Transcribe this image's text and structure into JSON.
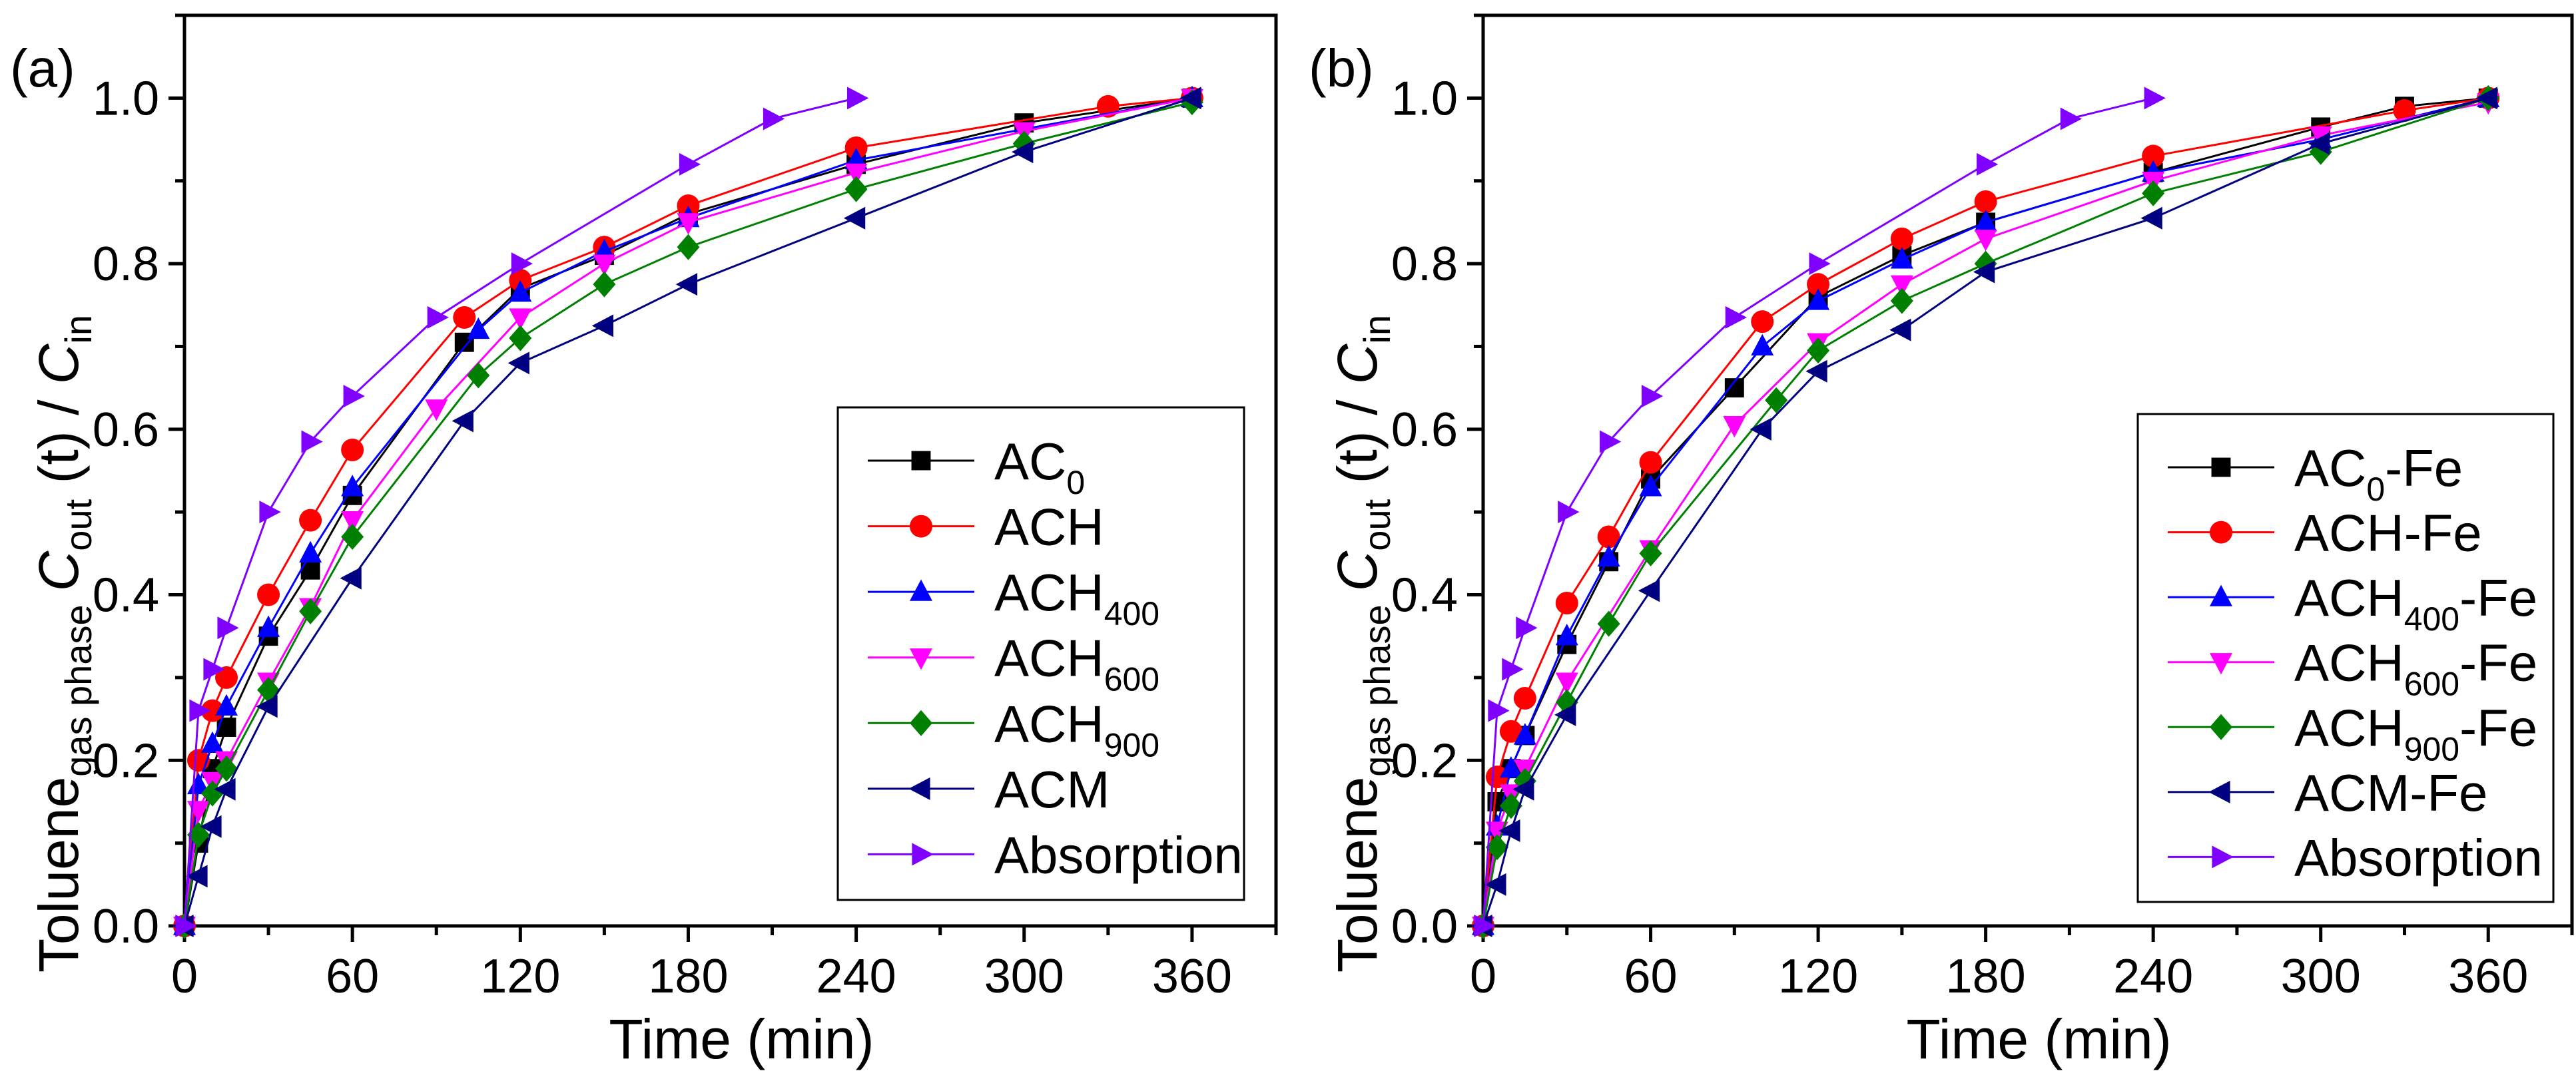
{
  "chart_data": [
    {
      "type": "line",
      "panel_label": "(a)",
      "xlabel": "Time (min)",
      "ylabel": {
        "main": "Toluene",
        "main_sub": "gas phase",
        "c": "C",
        "c_sub": "out",
        "t": " (t) / ",
        "c2": "C",
        "c2_sub": "in"
      },
      "xlim": [
        0,
        390
      ],
      "ylim": [
        0,
        1.1
      ],
      "xticks": [
        "0",
        "60",
        "120",
        "180",
        "240",
        "300",
        "360"
      ],
      "yticks": [
        "0.0",
        "0.2",
        "0.4",
        "0.6",
        "0.8",
        "1.0"
      ],
      "grid": false,
      "legend_position": "bottom-right",
      "series": [
        {
          "name": "AC0",
          "label": "AC",
          "sub": "0",
          "suffix": "",
          "color": "#000000",
          "marker": "square",
          "x": [
            0,
            5,
            10,
            15,
            30,
            45,
            60,
            100,
            120,
            150,
            180,
            240,
            300,
            360
          ],
          "y": [
            0,
            0.1,
            0.19,
            0.24,
            0.35,
            0.43,
            0.52,
            0.705,
            0.77,
            0.81,
            0.86,
            0.92,
            0.97,
            1.0
          ]
        },
        {
          "name": "ACH",
          "label": "ACH",
          "sub": "",
          "suffix": "",
          "color": "#ff0000",
          "marker": "circle",
          "x": [
            0,
            5,
            10,
            15,
            30,
            45,
            60,
            100,
            120,
            150,
            180,
            240,
            330,
            360
          ],
          "y": [
            0,
            0.2,
            0.26,
            0.3,
            0.4,
            0.49,
            0.575,
            0.735,
            0.78,
            0.82,
            0.87,
            0.94,
            0.99,
            1.0
          ]
        },
        {
          "name": "ACH400",
          "label": "ACH",
          "sub": "400",
          "suffix": "",
          "color": "#0000ff",
          "marker": "triangle-up",
          "x": [
            0,
            5,
            10,
            15,
            30,
            45,
            60,
            105,
            120,
            150,
            180,
            240,
            360
          ],
          "y": [
            0,
            0.17,
            0.22,
            0.265,
            0.36,
            0.45,
            0.53,
            0.72,
            0.765,
            0.815,
            0.855,
            0.925,
            1.0
          ]
        },
        {
          "name": "ACH600",
          "label": "ACH",
          "sub": "600",
          "suffix": "",
          "color": "#ff00ff",
          "marker": "triangle-down",
          "x": [
            0,
            5,
            10,
            15,
            30,
            45,
            60,
            90,
            120,
            150,
            180,
            240,
            300,
            360
          ],
          "y": [
            0,
            0.14,
            0.175,
            0.2,
            0.295,
            0.385,
            0.49,
            0.625,
            0.735,
            0.8,
            0.85,
            0.91,
            0.96,
            1.0
          ]
        },
        {
          "name": "ACH900",
          "label": "ACH",
          "sub": "900",
          "suffix": "",
          "color": "#008000",
          "marker": "diamond",
          "x": [
            0,
            5,
            10,
            15,
            30,
            45,
            60,
            105,
            120,
            150,
            180,
            240,
            300,
            360
          ],
          "y": [
            0,
            0.11,
            0.16,
            0.19,
            0.285,
            0.38,
            0.47,
            0.665,
            0.71,
            0.775,
            0.82,
            0.89,
            0.945,
            0.995
          ]
        },
        {
          "name": "ACM",
          "label": "ACM",
          "sub": "",
          "suffix": "",
          "color": "#000080",
          "marker": "triangle-left",
          "x": [
            0,
            5,
            10,
            15,
            30,
            60,
            100,
            120,
            150,
            180,
            240,
            300,
            360
          ],
          "y": [
            0,
            0.06,
            0.12,
            0.165,
            0.265,
            0.42,
            0.61,
            0.68,
            0.725,
            0.775,
            0.855,
            0.935,
            1.0
          ]
        },
        {
          "name": "Absorption",
          "label": "Absorption",
          "sub": "",
          "suffix": "",
          "color": "#8000ff",
          "marker": "triangle-right",
          "x": [
            0,
            5,
            10,
            15,
            30,
            45,
            60,
            90,
            120,
            180,
            210,
            240
          ],
          "y": [
            0,
            0.26,
            0.31,
            0.36,
            0.5,
            0.585,
            0.64,
            0.735,
            0.8,
            0.92,
            0.975,
            1.0
          ]
        }
      ]
    },
    {
      "type": "line",
      "panel_label": "(b)",
      "xlabel": "Time (min)",
      "ylabel": {
        "main": "Toluene",
        "main_sub": "gas phase",
        "c": "C",
        "c_sub": "out",
        "t": " (t) / ",
        "c2": "C",
        "c2_sub": "in"
      },
      "xlim": [
        0,
        390
      ],
      "ylim": [
        0,
        1.1
      ],
      "xticks": [
        "0",
        "60",
        "120",
        "180",
        "240",
        "300",
        "360"
      ],
      "yticks": [
        "0.0",
        "0.2",
        "0.4",
        "0.6",
        "0.8",
        "1.0"
      ],
      "grid": false,
      "legend_position": "bottom-right",
      "series": [
        {
          "name": "AC0-Fe",
          "label": "AC",
          "sub": "0",
          "suffix": "-Fe",
          "color": "#000000",
          "marker": "square",
          "x": [
            0,
            5,
            10,
            15,
            30,
            45,
            60,
            90,
            120,
            150,
            180,
            240,
            300,
            330,
            360
          ],
          "y": [
            0,
            0.15,
            0.19,
            0.23,
            0.34,
            0.44,
            0.54,
            0.65,
            0.76,
            0.81,
            0.85,
            0.91,
            0.965,
            0.99,
            1.0
          ]
        },
        {
          "name": "ACH-Fe",
          "label": "ACH",
          "sub": "",
          "suffix": "-Fe",
          "color": "#ff0000",
          "marker": "circle",
          "x": [
            0,
            5,
            10,
            15,
            30,
            45,
            60,
            100,
            120,
            150,
            180,
            240,
            330,
            360
          ],
          "y": [
            0,
            0.18,
            0.235,
            0.275,
            0.39,
            0.47,
            0.56,
            0.73,
            0.775,
            0.83,
            0.875,
            0.93,
            0.985,
            1.0
          ]
        },
        {
          "name": "ACH400-Fe",
          "label": "ACH",
          "sub": "400",
          "suffix": "-Fe",
          "color": "#0000ff",
          "marker": "triangle-up",
          "x": [
            0,
            5,
            10,
            15,
            30,
            45,
            60,
            100,
            120,
            150,
            180,
            240,
            300,
            360
          ],
          "y": [
            0,
            0.12,
            0.19,
            0.23,
            0.35,
            0.445,
            0.53,
            0.7,
            0.755,
            0.805,
            0.85,
            0.91,
            0.95,
            1.0
          ]
        },
        {
          "name": "ACH600-Fe",
          "label": "ACH",
          "sub": "600",
          "suffix": "-Fe",
          "color": "#ff00ff",
          "marker": "triangle-down",
          "x": [
            0,
            5,
            10,
            15,
            30,
            60,
            90,
            120,
            150,
            180,
            240,
            300,
            360
          ],
          "y": [
            0,
            0.115,
            0.16,
            0.19,
            0.295,
            0.455,
            0.605,
            0.705,
            0.775,
            0.83,
            0.9,
            0.955,
            0.995
          ]
        },
        {
          "name": "ACH900-Fe",
          "label": "ACH",
          "sub": "900",
          "suffix": "-Fe",
          "color": "#008000",
          "marker": "diamond",
          "x": [
            0,
            5,
            10,
            15,
            30,
            45,
            60,
            105,
            120,
            150,
            180,
            240,
            300,
            360
          ],
          "y": [
            0,
            0.095,
            0.145,
            0.175,
            0.27,
            0.365,
            0.45,
            0.635,
            0.695,
            0.755,
            0.8,
            0.885,
            0.935,
            1.0
          ]
        },
        {
          "name": "ACM-Fe",
          "label": "ACM",
          "sub": "",
          "suffix": "-Fe",
          "color": "#000080",
          "marker": "triangle-left",
          "x": [
            0,
            5,
            10,
            15,
            30,
            60,
            100,
            120,
            150,
            180,
            240,
            300,
            360
          ],
          "y": [
            0,
            0.05,
            0.115,
            0.165,
            0.255,
            0.405,
            0.6,
            0.67,
            0.72,
            0.79,
            0.855,
            0.945,
            1.0
          ]
        },
        {
          "name": "Absorption",
          "label": "Absorption",
          "sub": "",
          "suffix": "",
          "color": "#8000ff",
          "marker": "triangle-right",
          "x": [
            0,
            5,
            10,
            15,
            30,
            45,
            60,
            90,
            120,
            180,
            210,
            240
          ],
          "y": [
            0,
            0.26,
            0.31,
            0.36,
            0.5,
            0.585,
            0.64,
            0.735,
            0.8,
            0.92,
            0.975,
            1.0
          ]
        }
      ]
    }
  ]
}
